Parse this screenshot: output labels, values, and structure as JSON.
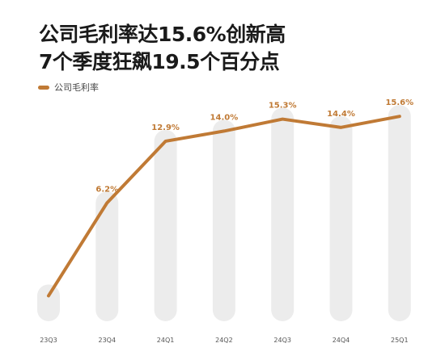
{
  "title": {
    "line1": "公司毛利率达15.6%创新高",
    "line2": "7个季度狂飙19.5个百分点"
  },
  "colors": {
    "line": "#c07a35",
    "bar": "#ececec",
    "label": "#c07a35",
    "tick": "#555555"
  },
  "chart_data": {
    "type": "line",
    "categories": [
      "23Q3",
      "23Q4",
      "24Q1",
      "24Q2",
      "24Q3",
      "24Q4",
      "25Q1"
    ],
    "series": [
      {
        "name": "公司毛利率",
        "values": [
          -3.9,
          6.2,
          12.9,
          14.0,
          15.3,
          14.4,
          15.6
        ],
        "labels": [
          "",
          "6.2%",
          "12.9%",
          "14.0%",
          "15.3%",
          "14.4%",
          "15.6%"
        ]
      }
    ],
    "legend": "top-left",
    "grid": false
  }
}
